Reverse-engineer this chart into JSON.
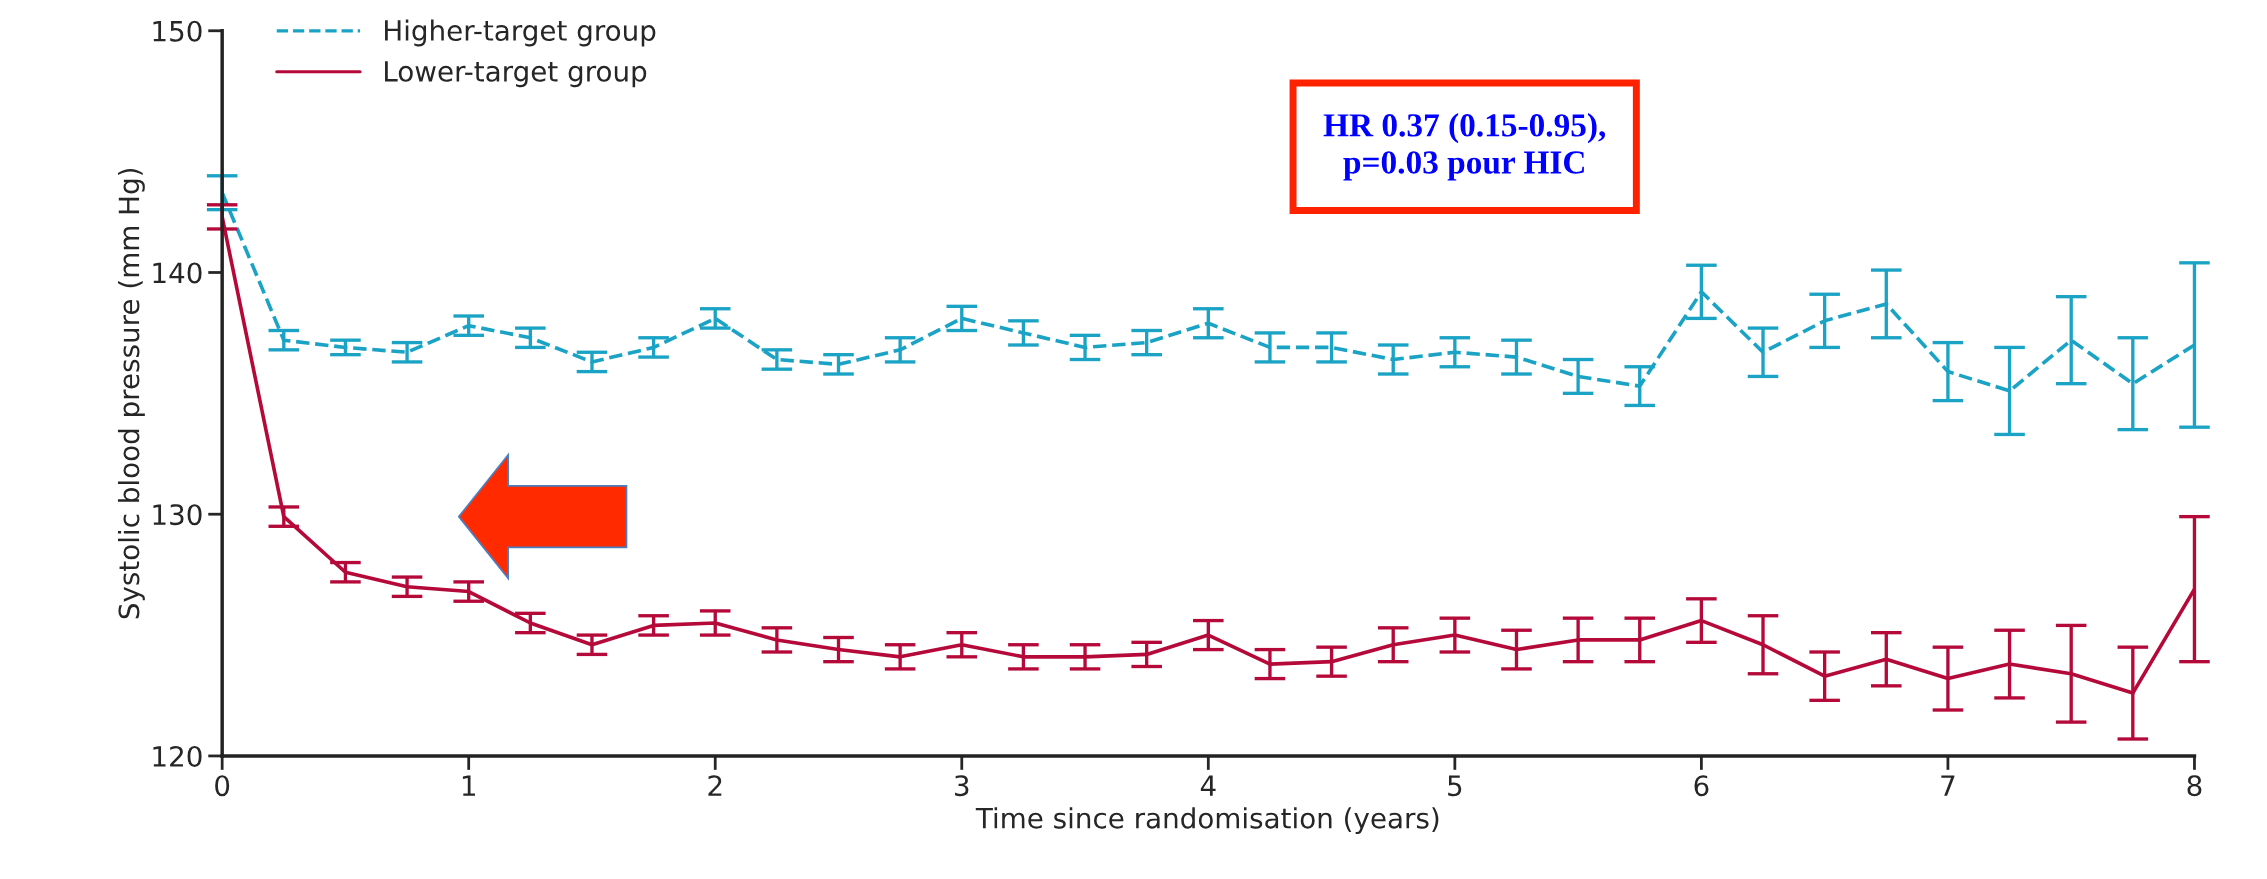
{
  "chart_data": {
    "type": "line",
    "xlabel": "Time since randomisation (years)",
    "ylabel": "Systolic blood pressure (mm Hg)",
    "x": [
      0,
      0.25,
      0.5,
      0.75,
      1,
      1.25,
      1.5,
      1.75,
      2,
      2.25,
      2.5,
      2.75,
      3,
      3.25,
      3.5,
      3.75,
      4,
      4.25,
      4.5,
      4.75,
      5,
      5.25,
      5.5,
      5.75,
      6,
      6.25,
      6.5,
      6.75,
      7,
      7.25,
      7.5,
      7.75,
      8
    ],
    "series": [
      {
        "name": "Higher-target group",
        "color": "#1aa3c4",
        "line_style": "dashed",
        "values": [
          143.3,
          137.2,
          136.9,
          136.7,
          137.8,
          137.3,
          136.3,
          136.9,
          138.1,
          136.4,
          136.2,
          136.8,
          138.1,
          137.5,
          136.9,
          137.1,
          137.9,
          136.9,
          136.9,
          136.4,
          136.7,
          136.5,
          135.7,
          135.3,
          139.2,
          136.7,
          138.0,
          138.7,
          135.9,
          135.1,
          137.2,
          135.4,
          137.0
        ],
        "errors": [
          0.7,
          0.4,
          0.3,
          0.4,
          0.4,
          0.4,
          0.4,
          0.4,
          0.4,
          0.4,
          0.4,
          0.5,
          0.5,
          0.5,
          0.5,
          0.5,
          0.6,
          0.6,
          0.6,
          0.6,
          0.6,
          0.7,
          0.7,
          0.8,
          1.1,
          1.0,
          1.1,
          1.4,
          1.2,
          1.8,
          1.8,
          1.9,
          3.4
        ]
      },
      {
        "name": "Lower-target group",
        "color": "#b5093a",
        "line_style": "solid",
        "values": [
          142.3,
          129.9,
          127.6,
          127.0,
          126.8,
          125.5,
          124.6,
          125.4,
          125.5,
          124.8,
          124.4,
          124.1,
          124.6,
          124.1,
          124.1,
          124.2,
          125.0,
          123.8,
          123.9,
          124.6,
          125.0,
          124.4,
          124.8,
          124.8,
          125.6,
          124.6,
          123.3,
          124.0,
          123.2,
          123.8,
          123.4,
          122.6,
          126.9
        ],
        "errors": [
          0.5,
          0.4,
          0.4,
          0.4,
          0.4,
          0.4,
          0.4,
          0.4,
          0.5,
          0.5,
          0.5,
          0.5,
          0.5,
          0.5,
          0.5,
          0.5,
          0.6,
          0.6,
          0.6,
          0.7,
          0.7,
          0.8,
          0.9,
          0.9,
          0.9,
          1.2,
          1.0,
          1.1,
          1.3,
          1.4,
          2.0,
          1.9,
          3.0
        ]
      }
    ],
    "xlim": [
      0,
      8
    ],
    "xticks": [
      0,
      1,
      2,
      3,
      4,
      5,
      6,
      7,
      8
    ],
    "ylim": [
      120,
      150
    ],
    "yticks": [
      120,
      130,
      140,
      150
    ],
    "grid": false,
    "legend": "top left",
    "marker": "none",
    "annotations": [
      "HR 0.37 (0.15-0.95),\np=0.03 pour HIC"
    ]
  }
}
